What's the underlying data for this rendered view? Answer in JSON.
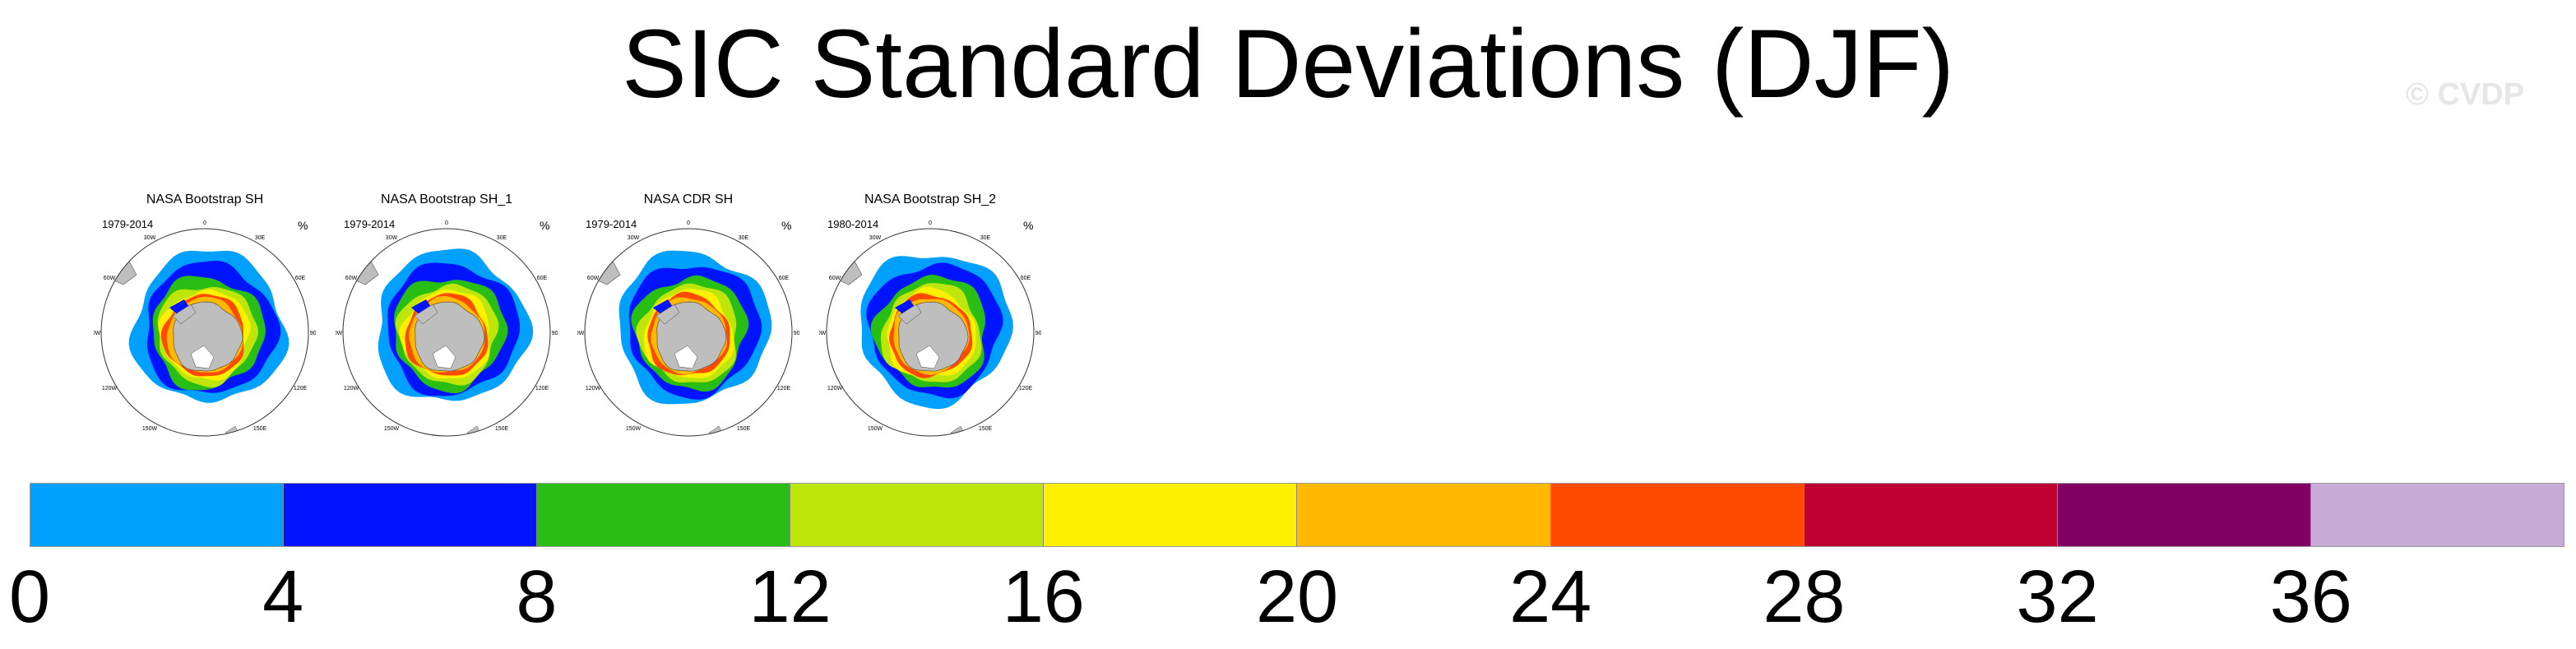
{
  "title": "SIC Standard Deviations (DJF)",
  "watermark": "© CVDP",
  "panels": [
    {
      "title": "NASA Bootstrap SH",
      "years": "1979-2014",
      "units": "%"
    },
    {
      "title": "NASA Bootstrap SH_1",
      "years": "1979-2014",
      "units": "%"
    },
    {
      "title": "NASA CDR SH",
      "years": "1979-2014",
      "units": "%"
    },
    {
      "title": "NASA Bootstrap SH_2",
      "years": "1980-2014",
      "units": "%"
    }
  ],
  "longitude_labels": [
    "0",
    "30E",
    "60E",
    "90E",
    "120E",
    "150E",
    "180",
    "150W",
    "120W",
    "90W",
    "60W",
    "30W"
  ],
  "colorbar": {
    "ticks": [
      "0",
      "4",
      "8",
      "12",
      "16",
      "20",
      "24",
      "28",
      "32",
      "36"
    ],
    "colors": [
      "#00a0ff",
      "#0014ff",
      "#28be14",
      "#bee60a",
      "#fff000",
      "#ffb900",
      "#ff4b00",
      "#be0032",
      "#820064",
      "#c8aad6"
    ],
    "land_color": "#bebebe",
    "continent_color": "#ffffff"
  }
}
